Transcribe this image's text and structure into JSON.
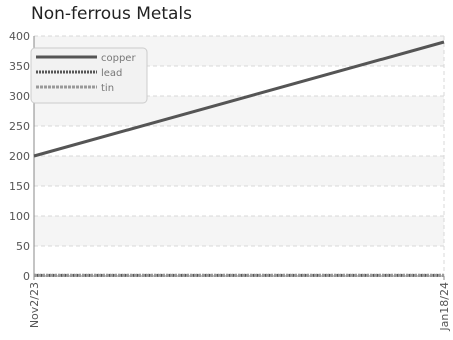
{
  "chart_data": {
    "type": "line",
    "title": "Non-ferrous Metals",
    "xlabel": "",
    "ylabel": "",
    "x_start": "Nov2/23",
    "x_end": "Jan18/24",
    "xticks": [
      "Nov2/23",
      "Jan18/24"
    ],
    "ylim": [
      0,
      400
    ],
    "yticks": [
      0,
      50,
      100,
      150,
      200,
      250,
      300,
      350,
      400
    ],
    "grid": true,
    "legend_position": "top-left",
    "series": [
      {
        "name": "copper",
        "x": [
          "Nov2/23",
          "Jan18/24"
        ],
        "values": [
          200,
          390
        ],
        "color": "#555555",
        "style": "solid"
      },
      {
        "name": "lead",
        "x": [
          "Nov2/23",
          "Jan18/24"
        ],
        "values": [
          1,
          1
        ],
        "color": "#555555",
        "style": "dotted"
      },
      {
        "name": "tin",
        "x": [
          "Nov2/23",
          "Jan18/24"
        ],
        "values": [
          1,
          1
        ],
        "color": "#999999",
        "style": "dashed"
      }
    ]
  }
}
